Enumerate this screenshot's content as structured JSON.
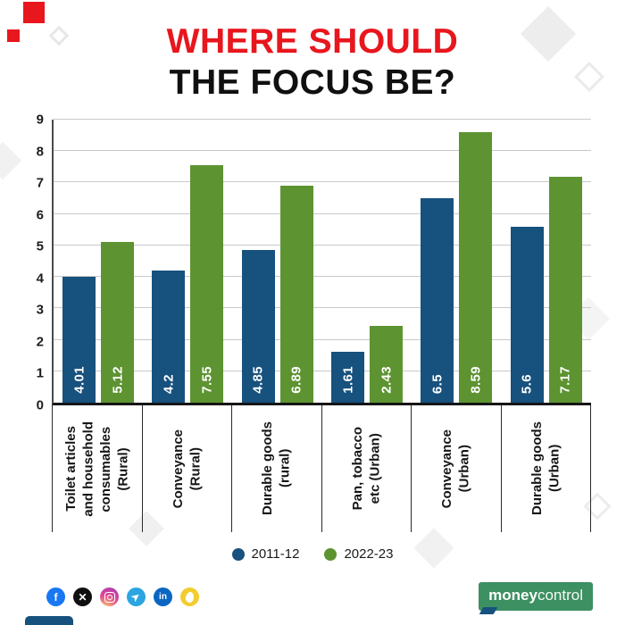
{
  "title": {
    "line1": "WHERE SHOULD",
    "line2": "THE FOCUS BE?"
  },
  "chart_data": {
    "type": "bar",
    "categories": [
      "Toilet articles\nand household\nconsumables\n(Rural)",
      "Conveyance\n(Rural)",
      "Durable goods\n(rural)",
      "Pan, tobacco\netc (Urban)",
      "Conveyance\n(Urban)",
      "Durable goods\n(Urban)"
    ],
    "series": [
      {
        "name": "2011-12",
        "color": "#17517e",
        "values": [
          4.01,
          4.2,
          4.85,
          1.61,
          6.5,
          5.6
        ]
      },
      {
        "name": "2022-23",
        "color": "#5d9331",
        "values": [
          5.12,
          7.55,
          6.89,
          2.43,
          8.59,
          7.17
        ]
      }
    ],
    "ylim": [
      0,
      9
    ],
    "yticks": [
      0,
      1,
      2,
      3,
      4,
      5,
      6,
      7,
      8,
      9
    ],
    "grid": true,
    "legend_position": "bottom"
  },
  "colors": {
    "title_red": "#e8161d",
    "bar_blue": "#17517e",
    "bar_green": "#5d9331",
    "brand_green": "#3c9061",
    "axis_dark": "#151515",
    "gridline": "#c9c9c9"
  },
  "footer": {
    "social": [
      {
        "name": "facebook",
        "glyph": "f",
        "color": "#1877f2"
      },
      {
        "name": "x",
        "glyph": "✕",
        "color": "#101010"
      },
      {
        "name": "instagram",
        "glyph": "",
        "color": "radial-gradient(circle at 30% 110%, #fdc468 0%, #df4996 55%, #9b36b7 100%)"
      },
      {
        "name": "telegram",
        "glyph": "➤",
        "color": "#2ca5e0"
      },
      {
        "name": "linkedin",
        "glyph": "in",
        "color": "#0a66c2"
      },
      {
        "name": "koo",
        "glyph": "",
        "color": "#f2cd2f"
      }
    ],
    "brand": {
      "part1": "money",
      "part2": "control"
    }
  }
}
